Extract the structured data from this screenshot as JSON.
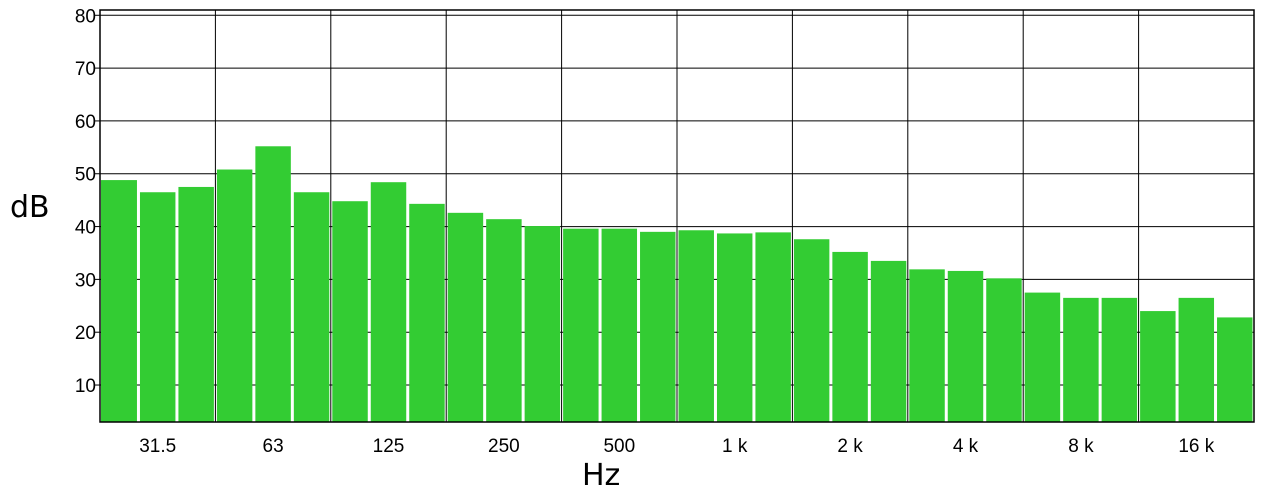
{
  "chart_data": {
    "type": "bar",
    "title": "",
    "xlabel": "Hz",
    "ylabel": "dB",
    "ylim": [
      3,
      81
    ],
    "yticks": [
      10,
      20,
      30,
      40,
      50,
      60,
      70,
      80
    ],
    "x_tick_labels": [
      {
        "label": "31.5",
        "index": 1.5
      },
      {
        "label": "63",
        "index": 4.5
      },
      {
        "label": "125",
        "index": 7.5
      },
      {
        "label": "250",
        "index": 10.5
      },
      {
        "label": "500",
        "index": 13.5
      },
      {
        "label": "1 k",
        "index": 16.5
      },
      {
        "label": "2 k",
        "index": 19.5
      },
      {
        "label": "4 k",
        "index": 22.5
      },
      {
        "label": "8 k",
        "index": 25.5
      },
      {
        "label": "16 k",
        "index": 28.5
      }
    ],
    "band_count": 30,
    "values": [
      48.8,
      46.5,
      47.5,
      50.8,
      55.2,
      46.5,
      44.8,
      48.4,
      44.3,
      42.6,
      41.4,
      40.1,
      39.6,
      39.6,
      39.0,
      39.3,
      38.7,
      38.9,
      37.6,
      35.2,
      33.5,
      31.9,
      31.6,
      30.2,
      27.5,
      26.5,
      26.5,
      24.0,
      26.5,
      22.8
    ],
    "grid": true,
    "bar_color": "#33cc33",
    "grid_color": "#000000"
  }
}
